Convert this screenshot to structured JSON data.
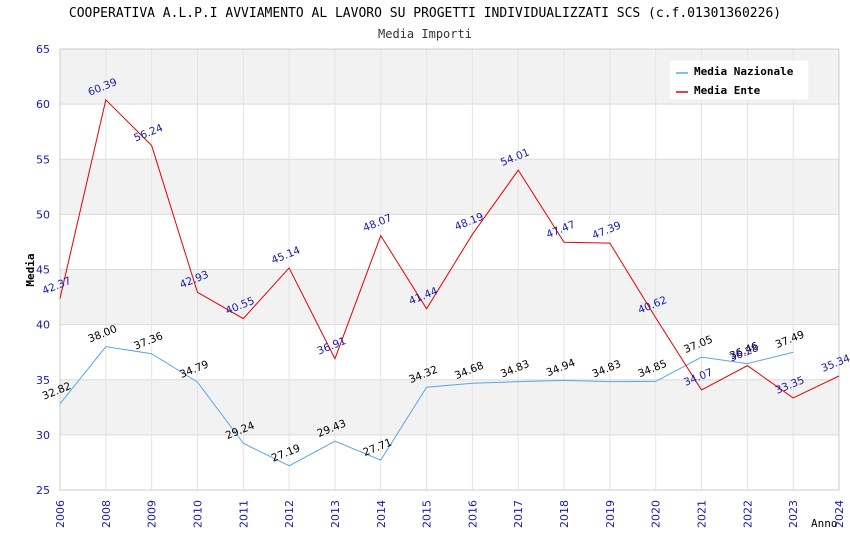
{
  "chart_data": {
    "type": "line",
    "title": "COOPERATIVA A.L.P.I AVVIAMENTO AL LAVORO SU PROGETTI INDIVIDUALIZZATI SCS (c.f.01301360226)",
    "subtitle": "Media Importi",
    "ylabel": "Media",
    "xlabel": "Anno",
    "ylim": [
      25,
      65
    ],
    "yticks": [
      "25",
      "30",
      "35",
      "40",
      "45",
      "50",
      "55",
      "60",
      "65"
    ],
    "categories": [
      "2006",
      "2008",
      "2009",
      "2010",
      "2011",
      "2012",
      "2013",
      "2014",
      "2015",
      "2016",
      "2017",
      "2018",
      "2019",
      "2020",
      "2021",
      "2022",
      "2023",
      "2024"
    ],
    "legend_position": "top-right",
    "series": [
      {
        "name": "Media Nazionale",
        "color": "#5aa5e6",
        "values": [
          32.82,
          38.0,
          37.36,
          34.79,
          29.24,
          27.19,
          29.43,
          27.71,
          34.32,
          34.68,
          34.83,
          34.94,
          34.83,
          34.85,
          37.05,
          36.46,
          37.49,
          null
        ],
        "labels": [
          "32.82",
          "38.00",
          "37.36",
          "34.79",
          "29.24",
          "27.19",
          "29.43",
          "27.71",
          "34.32",
          "34.68",
          "34.83",
          "34.94",
          "34.83",
          "34.85",
          "37.05",
          "36.46",
          "37.49",
          ""
        ]
      },
      {
        "name": "Media Ente",
        "color": "#e60000",
        "values": [
          42.37,
          60.39,
          56.24,
          42.93,
          40.55,
          45.14,
          36.91,
          48.07,
          41.44,
          48.19,
          54.01,
          47.47,
          47.39,
          40.62,
          34.07,
          36.28,
          33.35,
          35.34
        ],
        "labels": [
          "42.37",
          "60.39",
          "56.24",
          "42.93",
          "40.55",
          "45.14",
          "36.91",
          "48.07",
          "41.44",
          "48.19",
          "54.01",
          "47.47",
          "47.39",
          "40.62",
          "34.07",
          "36.28",
          "33.35",
          "35.34"
        ]
      }
    ],
    "grid": true
  }
}
